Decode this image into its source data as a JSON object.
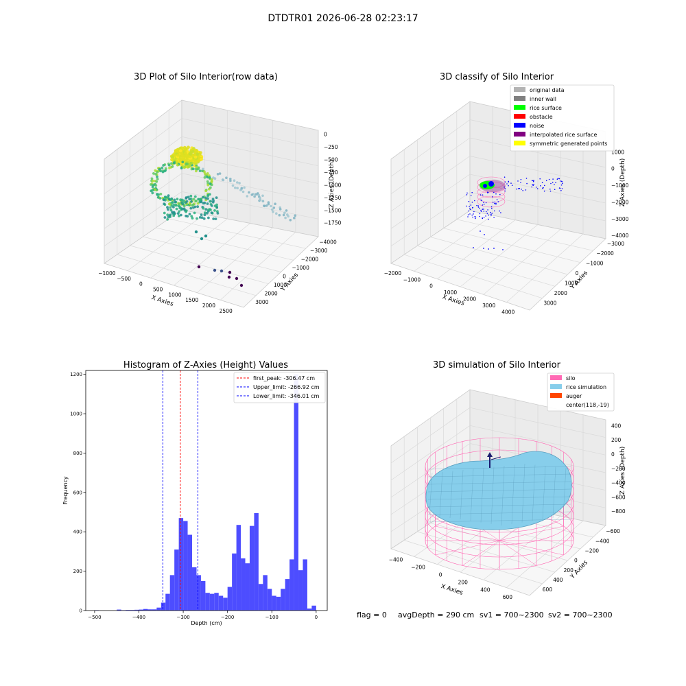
{
  "suptitle": "DTDTR01 2026-06-28 02:23:17",
  "footer": {
    "flag": "flag = 0",
    "avg_depth": "avgDepth = 290 cm",
    "sv1": "sv1 = 700~2300",
    "sv2": "sv2 = 700~2300"
  },
  "chart_data": [
    {
      "type": "scatter",
      "title": "3D Plot of Silo Interior(row data)",
      "xlabel": "X Axies",
      "ylabel": "Y Axies",
      "zlabel": "Z Axies (Depth)",
      "x_ticks": [
        "−1000",
        "−500",
        "0",
        "500",
        "1000",
        "1500",
        "2000",
        "2500"
      ],
      "y_ticks": [
        "−4000",
        "−3000",
        "−2000",
        "−1000",
        "0",
        "1000",
        "2000",
        "3000"
      ],
      "z_ticks": [
        "0",
        "−250",
        "−500",
        "−750",
        "−1000",
        "−1250",
        "−1500",
        "−1750"
      ],
      "colormap": "viridis"
    },
    {
      "type": "scatter",
      "title": "3D classify of Silo Interior",
      "xlabel": "X Axies",
      "ylabel": "Y Axies",
      "zlabel": "Z Axies (Depth)",
      "x_ticks": [
        "−2000",
        "−1000",
        "0",
        "1000",
        "2000",
        "3000",
        "4000"
      ],
      "y_ticks": [
        "−3000",
        "−2000",
        "−1000",
        "0",
        "1000",
        "2000",
        "3000"
      ],
      "z_ticks": [
        "1000",
        "0",
        "−1000",
        "−2000",
        "−3000",
        "−4000"
      ],
      "z_ticks_partial": "000",
      "legend_position": "top-right",
      "legend": [
        {
          "label": "original data",
          "color": "#b3b3b3"
        },
        {
          "label": "inner wall",
          "color": "#808080"
        },
        {
          "label": "rice surface",
          "color": "#00ff00"
        },
        {
          "label": "obstacle",
          "color": "#ff0000"
        },
        {
          "label": "noise",
          "color": "#0000ff"
        },
        {
          "label": "interpolated rice surface",
          "color": "#800080"
        },
        {
          "label": "symmetric generated points",
          "color": "#ffff00"
        }
      ]
    },
    {
      "type": "bar",
      "title": "Histogram of Z-Axies (Height) Values",
      "xlabel": "Depth (cm)",
      "ylabel": "Frequency",
      "xlim": [
        -520,
        25
      ],
      "ylim": [
        0,
        1220
      ],
      "x_ticks": [
        -500,
        -400,
        -300,
        -200,
        -100,
        0
      ],
      "y_ticks": [
        0,
        200,
        400,
        600,
        800,
        1000,
        1200
      ],
      "bin_start": -500,
      "bin_width": 10,
      "bar_color": "#4d4dff",
      "values": [
        2,
        0,
        0,
        0,
        0,
        5,
        2,
        3,
        3,
        4,
        5,
        8,
        6,
        6,
        15,
        40,
        85,
        180,
        310,
        470,
        455,
        385,
        220,
        180,
        150,
        90,
        85,
        90,
        75,
        65,
        120,
        290,
        435,
        265,
        240,
        430,
        495,
        135,
        180,
        110,
        75,
        70,
        110,
        160,
        260,
        1200,
        205,
        260,
        10,
        25
      ],
      "lines": [
        {
          "label": "first_peak: -306.47 cm",
          "x": -306.47,
          "color": "#ff0000"
        },
        {
          "label": "Upper_limit: -266.92 cm",
          "x": -266.92,
          "color": "#0000ff"
        },
        {
          "label": "Lower_limit: -346.01 cm",
          "x": -346.01,
          "color": "#0000ff"
        }
      ],
      "legend_position": "top-right"
    },
    {
      "type": "surface",
      "title": "3D simulation of Silo Interior",
      "xlabel": "X Axies",
      "ylabel": "Y Axies",
      "zlabel": "Z Axies (Depth)",
      "x_ticks": [
        "−400",
        "−200",
        "0",
        "200",
        "400",
        "600"
      ],
      "y_ticks": [
        "−600",
        "−400",
        "−200",
        "0",
        "200",
        "400",
        "600"
      ],
      "z_ticks": [
        "400",
        "200",
        "0",
        "−200",
        "−400",
        "−600",
        "−800"
      ],
      "legend_position": "top-right",
      "legend": [
        {
          "label": "silo",
          "color": "#ff69b4"
        },
        {
          "label": "rice simulation",
          "color": "#87ceeb"
        },
        {
          "label": "auger",
          "color": "#ff4500"
        },
        {
          "label": "center(118,-19)",
          "color": ""
        }
      ]
    }
  ]
}
